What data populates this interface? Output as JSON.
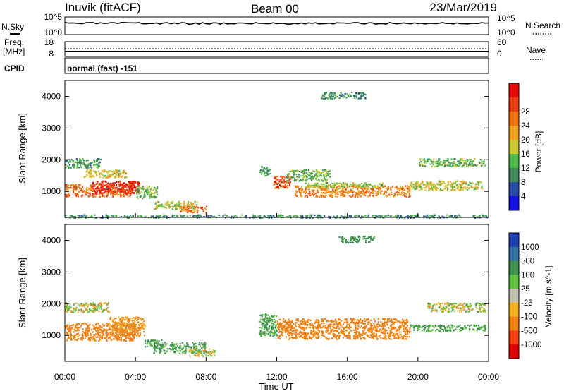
{
  "header": {
    "station": "Inuvik (fitACF)",
    "beam": "Beam 00",
    "date": "23/Mar/2019"
  },
  "panels": {
    "nsky": {
      "label": "N.Sky",
      "ticks": [
        "10^5",
        "10^0"
      ],
      "right_label": "N.Search",
      "right_ticks": [
        "10^5",
        "10^0"
      ]
    },
    "freq": {
      "label_line1": "Freq.",
      "label_line2": "[MHz]",
      "ticks": [
        "18",
        "8"
      ],
      "right_label": "Nave",
      "right_ticks": [
        "60",
        "0"
      ]
    },
    "cpid": {
      "label": "CPID",
      "mode_text": "normal (fast) -151"
    }
  },
  "chart_data": [
    {
      "type": "heatmap",
      "name_printed": "Power",
      "ylabel": "Slant Range [km]",
      "xlabel": "Time UT",
      "x_ticks": [
        "00:00",
        "04:00",
        "08:00",
        "12:00",
        "16:00",
        "20:00",
        "00:00"
      ],
      "xlim_hours": [
        0,
        24
      ],
      "y_ticks": [
        1000,
        2000,
        3000,
        4000
      ],
      "ylim": [
        180,
        4500
      ],
      "colorbar": {
        "label": "Power [dB]",
        "ticks": [
          4,
          8,
          12,
          16,
          20,
          24,
          28
        ],
        "colors": [
          "#1414e6",
          "#2a4ea8",
          "#3f8a5a",
          "#4fb84a",
          "#c8c832",
          "#f0a020",
          "#f07010",
          "#e83c10",
          "#e60a0a"
        ]
      },
      "regions": [
        {
          "x0": 0.0,
          "x1": 2.0,
          "y0": 1750,
          "y1": 2050,
          "value": 10
        },
        {
          "x0": 0.0,
          "x1": 3.8,
          "y0": 850,
          "y1": 1250,
          "value": 23
        },
        {
          "x0": 1.5,
          "x1": 4.2,
          "y0": 950,
          "y1": 1350,
          "value": 28
        },
        {
          "x0": 1.0,
          "x1": 3.5,
          "y0": 1450,
          "y1": 1700,
          "value": 17
        },
        {
          "x0": 4.0,
          "x1": 5.2,
          "y0": 800,
          "y1": 1200,
          "value": 12
        },
        {
          "x0": 5.0,
          "x1": 7.5,
          "y0": 450,
          "y1": 700,
          "value": 15
        },
        {
          "x0": 6.5,
          "x1": 8.0,
          "y0": 350,
          "y1": 550,
          "value": 22
        },
        {
          "x0": 11.0,
          "x1": 11.6,
          "y0": 1500,
          "y1": 1800,
          "value": 10
        },
        {
          "x0": 11.8,
          "x1": 12.8,
          "y0": 1100,
          "y1": 1500,
          "value": 25
        },
        {
          "x0": 12.5,
          "x1": 15.0,
          "y0": 1350,
          "y1": 1700,
          "value": 12
        },
        {
          "x0": 13.0,
          "x1": 19.5,
          "y0": 850,
          "y1": 1200,
          "value": 21
        },
        {
          "x0": 13.5,
          "x1": 18.0,
          "y0": 1150,
          "y1": 1300,
          "value": 14
        },
        {
          "x0": 19.5,
          "x1": 23.6,
          "y0": 1050,
          "y1": 1350,
          "value": 16
        },
        {
          "x0": 20.0,
          "x1": 23.8,
          "y0": 1800,
          "y1": 2050,
          "value": 12
        },
        {
          "x0": 14.5,
          "x1": 17.0,
          "y0": 3950,
          "y1": 4150,
          "value": 10
        },
        {
          "x0": 0.0,
          "x1": 24.0,
          "y0": 180,
          "y1": 280,
          "value": 9
        }
      ]
    },
    {
      "type": "heatmap",
      "name_printed": "Velocity",
      "ylabel": "Slant Range [km]",
      "xlabel": "Time UT",
      "x_ticks": [
        "00:00",
        "04:00",
        "08:00",
        "12:00",
        "16:00",
        "20:00",
        "00:00"
      ],
      "xlim_hours": [
        0,
        24
      ],
      "y_ticks": [
        1000,
        2000,
        3000,
        4000
      ],
      "ylim": [
        180,
        4500
      ],
      "colorbar": {
        "label": "Velocity [m s^-1]",
        "ticks": [
          1000,
          500,
          100,
          25,
          -25,
          -100,
          -500,
          -1000
        ],
        "colors": [
          "#2040b0",
          "#3070a0",
          "#3c9050",
          "#60c040",
          "#c0c0b0",
          "#f0b020",
          "#f08010",
          "#f04010",
          "#e00000"
        ]
      },
      "regions": [
        {
          "x0": 0.0,
          "x1": 2.5,
          "y0": 1750,
          "y1": 2050,
          "value": 0
        },
        {
          "x0": 0.0,
          "x1": 4.0,
          "y0": 850,
          "y1": 1400,
          "value": -300
        },
        {
          "x0": 2.5,
          "x1": 4.5,
          "y0": 1000,
          "y1": 1600,
          "value": -150
        },
        {
          "x0": 4.5,
          "x1": 5.5,
          "y0": 650,
          "y1": 900,
          "value": 150
        },
        {
          "x0": 5.0,
          "x1": 8.0,
          "y0": 450,
          "y1": 800,
          "value": 120
        },
        {
          "x0": 7.0,
          "x1": 8.5,
          "y0": 350,
          "y1": 600,
          "value": 0
        },
        {
          "x0": 11.0,
          "x1": 12.0,
          "y0": 1000,
          "y1": 1700,
          "value": 150
        },
        {
          "x0": 12.0,
          "x1": 19.5,
          "y0": 900,
          "y1": 1550,
          "value": -300
        },
        {
          "x0": 19.5,
          "x1": 23.8,
          "y0": 1150,
          "y1": 1350,
          "value": 150
        },
        {
          "x0": 20.5,
          "x1": 23.8,
          "y0": 1750,
          "y1": 2050,
          "value": 0
        },
        {
          "x0": 15.5,
          "x1": 17.5,
          "y0": 3950,
          "y1": 4150,
          "value": 200
        }
      ]
    }
  ]
}
